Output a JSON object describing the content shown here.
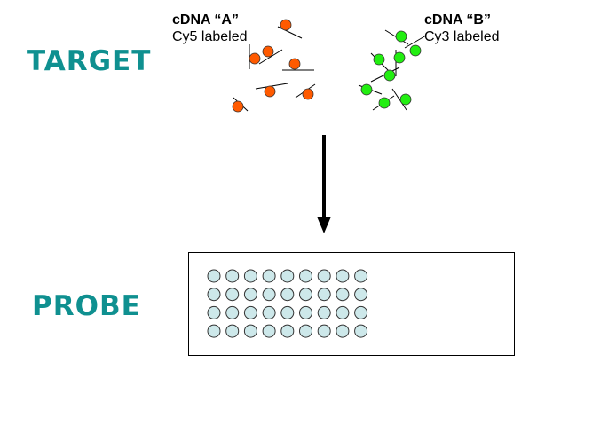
{
  "labels": {
    "target": "TARGET",
    "probe": "PROBE"
  },
  "cdna_a": {
    "title": "cDNA “A”",
    "dye": "Cy5 labeled",
    "color": "#ff5a00"
  },
  "cdna_b": {
    "title": "cDNA “B”",
    "dye": "Cy3 labeled",
    "color": "#22ee11"
  },
  "colors": {
    "label": "#0f9090",
    "probe_spot": "#cde8ea",
    "arrow": "#000000"
  },
  "probe_array": {
    "rows": 4,
    "cols": 9
  }
}
